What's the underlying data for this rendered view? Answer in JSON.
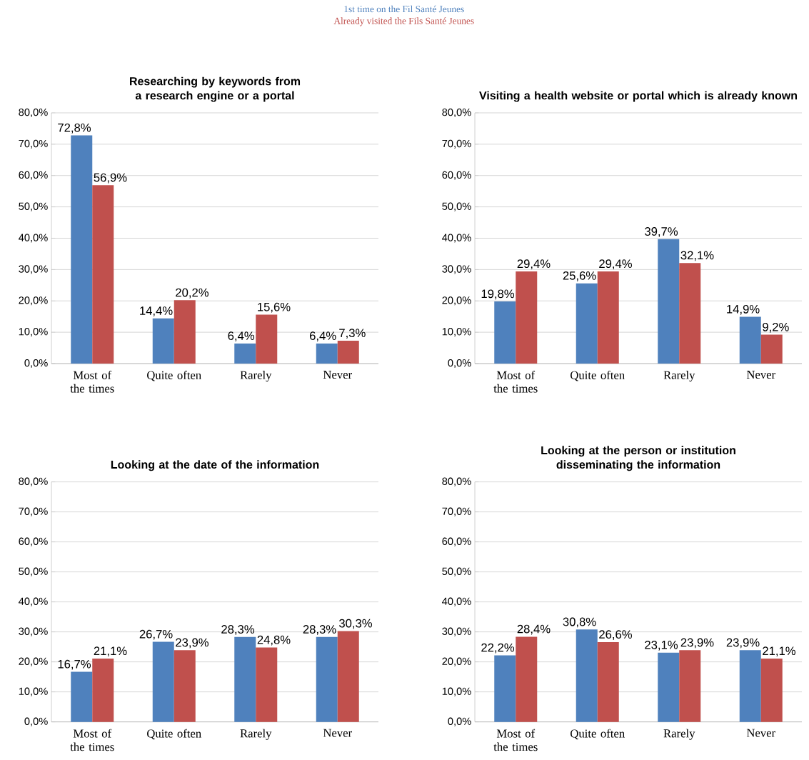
{
  "chart_data": [
    {
      "type": "bar",
      "title": "Researching by keywords from a research engine or a portal",
      "categories": [
        "Most of the times",
        "Quite often",
        "Rarely",
        "Never"
      ],
      "legend": "top",
      "grid": "y",
      "ylim": [
        0,
        80
      ],
      "yticks": [
        {
          "value": 0,
          "label": "0,0%"
        },
        {
          "value": 10,
          "label": "10,0%"
        },
        {
          "value": 20,
          "label": "20,0%"
        },
        {
          "value": 30,
          "label": "30,0%"
        },
        {
          "value": 40,
          "label": "40,0%"
        },
        {
          "value": 50,
          "label": "50,0%"
        },
        {
          "value": 60,
          "label": "60,0%"
        },
        {
          "value": 70,
          "label": "70,0%"
        },
        {
          "value": 80,
          "label": "80,0%"
        }
      ],
      "series": [
        {
          "name": "1st time on the Fil Santé Jeunes",
          "color": "#4f81bd",
          "values": [
            72.8,
            14.4,
            6.4,
            6.4
          ],
          "value_labels": [
            "72,8%",
            "14,4%",
            "6,4%",
            "6,4%"
          ]
        },
        {
          "name": "Already visited the Fils Santé Jeunes",
          "color": "#c0504d",
          "values": [
            56.9,
            20.2,
            15.6,
            7.3
          ],
          "value_labels": [
            "56,9%",
            "20,2%",
            "15,6%",
            "7,3%"
          ]
        }
      ]
    },
    {
      "type": "bar",
      "title": "Visiting a health website or portal which is already known",
      "categories": [
        "Most of the times",
        "Quite often",
        "Rarely",
        "Never"
      ],
      "grid": "y",
      "ylim": [
        0,
        80
      ],
      "yticks": [
        {
          "value": 0,
          "label": "0,0%"
        },
        {
          "value": 10,
          "label": "10,0%"
        },
        {
          "value": 20,
          "label": "20,0%"
        },
        {
          "value": 30,
          "label": "30,0%"
        },
        {
          "value": 40,
          "label": "40,0%"
        },
        {
          "value": 50,
          "label": "50,0%"
        },
        {
          "value": 60,
          "label": "60,0%"
        },
        {
          "value": 70,
          "label": "70,0%"
        },
        {
          "value": 80,
          "label": "80,0%"
        }
      ],
      "series": [
        {
          "color": "#4f81bd",
          "values": [
            19.8,
            25.6,
            39.7,
            14.9
          ],
          "value_labels": [
            "19,8%",
            "25,6%",
            "39,7%",
            "14,9%"
          ]
        },
        {
          "color": "#c0504d",
          "values": [
            29.4,
            29.4,
            32.1,
            9.2
          ],
          "value_labels": [
            "29,4%",
            "29,4%",
            "32,1%",
            "9,2%"
          ]
        }
      ]
    },
    {
      "type": "bar",
      "title": "Looking at the date of the information",
      "categories": [
        "Most of the times",
        "Quite often",
        "Rarely",
        "Never"
      ],
      "grid": "y",
      "ylim": [
        0,
        80
      ],
      "yticks": [
        {
          "value": 0,
          "label": "0,0%"
        },
        {
          "value": 10,
          "label": "10,0%"
        },
        {
          "value": 20,
          "label": "20,0%"
        },
        {
          "value": 30,
          "label": "30,0%"
        },
        {
          "value": 40,
          "label": "40,0%"
        },
        {
          "value": 50,
          "label": "50,0%"
        },
        {
          "value": 60,
          "label": "60,0%"
        },
        {
          "value": 70,
          "label": "70,0%"
        },
        {
          "value": 80,
          "label": "80,0%"
        }
      ],
      "series": [
        {
          "color": "#4f81bd",
          "values": [
            16.7,
            26.7,
            28.3,
            28.3
          ],
          "value_labels": [
            "16,7%",
            "26,7%",
            "28,3%",
            "28,3%"
          ]
        },
        {
          "color": "#c0504d",
          "values": [
            21.1,
            23.9,
            24.8,
            30.3
          ],
          "value_labels": [
            "21,1%",
            "23,9%",
            "24,8%",
            "30,3%"
          ]
        }
      ]
    },
    {
      "type": "bar",
      "title": "Looking at the person or institution disseminating the information",
      "categories": [
        "Most of the times",
        "Quite often",
        "Rarely",
        "Never"
      ],
      "grid": "y",
      "ylim": [
        0,
        80
      ],
      "yticks": [
        {
          "value": 0,
          "label": "0,0%"
        },
        {
          "value": 10,
          "label": "10,0%"
        },
        {
          "value": 20,
          "label": "20,0%"
        },
        {
          "value": 30,
          "label": "30,0%"
        },
        {
          "value": 40,
          "label": "40,0%"
        },
        {
          "value": 50,
          "label": "50,0%"
        },
        {
          "value": 60,
          "label": "60,0%"
        },
        {
          "value": 70,
          "label": "70,0%"
        },
        {
          "value": 80,
          "label": "80,0%"
        }
      ],
      "series": [
        {
          "color": "#4f81bd",
          "values": [
            22.2,
            30.8,
            23.1,
            23.9
          ],
          "value_labels": [
            "22,2%",
            "30,8%",
            "23,1%",
            "23,9%"
          ]
        },
        {
          "color": "#c0504d",
          "values": [
            28.4,
            26.6,
            23.9,
            21.1
          ],
          "value_labels": [
            "28,4%",
            "26,6%",
            "23,9%",
            "21,1%"
          ]
        }
      ]
    }
  ]
}
